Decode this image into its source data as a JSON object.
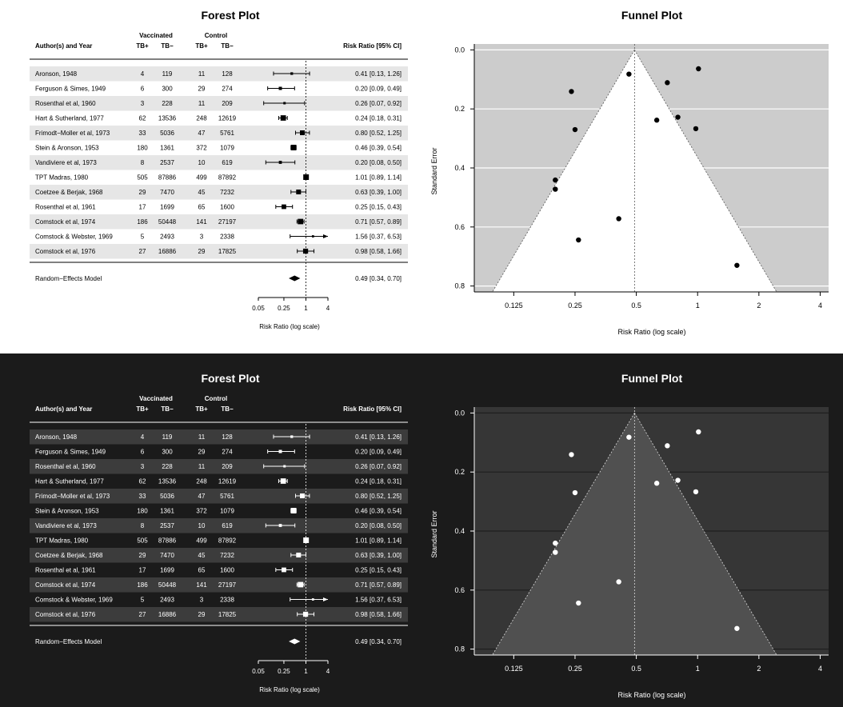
{
  "theme_colors": {
    "light": {
      "bg": "#ffffff",
      "fg": "#000000",
      "stripe": "#e6e6e6",
      "funnel_outer": "#cccccc",
      "funnel_inner": "#ffffff",
      "grid": "#ffffff",
      "point": "#000000",
      "refline": "#555555"
    },
    "dark": {
      "bg": "#1b1b1b",
      "fg": "#ffffff",
      "stripe": "#3c3c3c",
      "funnel_outer": "#363636",
      "funnel_inner": "#505050",
      "grid": "#1f1f1f",
      "point": "#ffffff",
      "refline": "#dddddd"
    }
  },
  "forest": {
    "title": "Forest Plot",
    "col_author": "Author(s) and Year",
    "group_vaccinated": "Vaccinated",
    "group_control": "Control",
    "tb_pos": "TB+",
    "tb_neg": "TB−",
    "col_rr": "Risk Ratio [95% CI]",
    "xlabel": "Risk Ratio (log scale)",
    "model_label": "Random−Effects Model"
  },
  "funnel": {
    "title": "Funnel Plot",
    "xlabel": "Risk Ratio (log scale)",
    "ylabel": "Standard Error"
  },
  "chart_data": [
    {
      "type": "forest",
      "title": "Forest Plot",
      "xlabel": "Risk Ratio (log scale)",
      "x_scale": "log",
      "xlim": [
        0.05,
        4
      ],
      "xticks": [
        0.05,
        0.25,
        1,
        4
      ],
      "xtick_labels": [
        "0.05",
        "0.25",
        "1",
        "4"
      ],
      "reference_line": 1,
      "studies": [
        {
          "author": "Aronson, 1948",
          "tpos": "4",
          "tneg": "119",
          "cpos": "11",
          "cneg": "128",
          "rr": 0.41,
          "lo": 0.13,
          "hi": 1.26,
          "text": "0.41 [0.13, 1.26]",
          "weight": 0.25
        },
        {
          "author": "Ferguson & Simes, 1949",
          "tpos": "6",
          "tneg": "300",
          "cpos": "29",
          "cneg": "274",
          "rr": 0.2,
          "lo": 0.09,
          "hi": 0.49,
          "text": "0.20 [0.09, 0.49]",
          "weight": 0.4
        },
        {
          "author": "Rosenthal et al, 1960",
          "tpos": "3",
          "tneg": "228",
          "cpos": "11",
          "cneg": "209",
          "rr": 0.26,
          "lo": 0.07,
          "hi": 0.92,
          "text": "0.26 [0.07, 0.92]",
          "weight": 0.2
        },
        {
          "author": "Hart & Sutherland, 1977",
          "tpos": "62",
          "tneg": "13536",
          "cpos": "248",
          "cneg": "12619",
          "rr": 0.24,
          "lo": 0.18,
          "hi": 0.31,
          "text": "0.24 [0.18, 0.31]",
          "weight": 0.95
        },
        {
          "author": "Frimodt−Moller et al, 1973",
          "tpos": "33",
          "tneg": "5036",
          "cpos": "47",
          "cneg": "5761",
          "rr": 0.8,
          "lo": 0.52,
          "hi": 1.25,
          "text": "0.80 [0.52, 1.25]",
          "weight": 0.8
        },
        {
          "author": "Stein & Aronson, 1953",
          "tpos": "180",
          "tneg": "1361",
          "cpos": "372",
          "cneg": "1079",
          "rr": 0.46,
          "lo": 0.39,
          "hi": 0.54,
          "text": "0.46 [0.39, 0.54]",
          "weight": 1.0
        },
        {
          "author": "Vandiviere et al, 1973",
          "tpos": "8",
          "tneg": "2537",
          "cpos": "10",
          "cneg": "619",
          "rr": 0.2,
          "lo": 0.08,
          "hi": 0.5,
          "text": "0.20 [0.08, 0.50]",
          "weight": 0.35
        },
        {
          "author": "TPT Madras, 1980",
          "tpos": "505",
          "tneg": "87886",
          "cpos": "499",
          "cneg": "87892",
          "rr": 1.01,
          "lo": 0.89,
          "hi": 1.14,
          "text": "1.01 [0.89, 1.14]",
          "weight": 1.0
        },
        {
          "author": "Coetzee & Berjak, 1968",
          "tpos": "29",
          "tneg": "7470",
          "cpos": "45",
          "cneg": "7232",
          "rr": 0.63,
          "lo": 0.39,
          "hi": 1.0,
          "text": "0.63 [0.39, 1.00]",
          "weight": 0.8
        },
        {
          "author": "Rosenthal et al, 1961",
          "tpos": "17",
          "tneg": "1699",
          "cpos": "65",
          "cneg": "1600",
          "rr": 0.25,
          "lo": 0.15,
          "hi": 0.43,
          "text": "0.25 [0.15, 0.43]",
          "weight": 0.75
        },
        {
          "author": "Comstock et al, 1974",
          "tpos": "186",
          "tneg": "50448",
          "cpos": "141",
          "cneg": "27197",
          "rr": 0.71,
          "lo": 0.57,
          "hi": 0.89,
          "text": "0.71 [0.57, 0.89]",
          "weight": 0.95
        },
        {
          "author": "Comstock & Webster, 1969",
          "tpos": "5",
          "tneg": "2493",
          "cpos": "3",
          "cneg": "2338",
          "rr": 1.56,
          "lo": 0.37,
          "hi": 6.53,
          "text": "1.56 [0.37, 6.53]",
          "weight": 0.15,
          "arrow_right": true
        },
        {
          "author": "Comstock et al, 1976",
          "tpos": "27",
          "tneg": "16886",
          "cpos": "29",
          "cneg": "17825",
          "rr": 0.98,
          "lo": 0.58,
          "hi": 1.66,
          "text": "0.98 [0.58, 1.66]",
          "weight": 0.85
        }
      ],
      "summary": {
        "label": "Random−Effects Model",
        "rr": 0.49,
        "lo": 0.34,
        "hi": 0.7,
        "text": "0.49 [0.34, 0.70]"
      }
    },
    {
      "type": "scatter",
      "title": "Funnel Plot",
      "xlabel": "Risk Ratio (log scale)",
      "ylabel": "Standard Error",
      "x_scale": "log",
      "xlim": [
        0.08,
        4.4
      ],
      "xticks": [
        0.125,
        0.25,
        0.5,
        1,
        2,
        4
      ],
      "xtick_labels": [
        "0.125",
        "0.25",
        "0.5",
        "1",
        "2",
        "4"
      ],
      "ylim": [
        0.82,
        -0.02
      ],
      "y_reversed": true,
      "yticks": [
        0.0,
        0.2,
        0.4,
        0.6,
        0.8
      ],
      "ytick_labels": [
        "0.0",
        "0.2",
        "0.4",
        "0.6",
        "0.8"
      ],
      "center": 0.49,
      "points": [
        {
          "x": 0.41,
          "y": 0.572
        },
        {
          "x": 0.2,
          "y": 0.441
        },
        {
          "x": 0.26,
          "y": 0.644
        },
        {
          "x": 0.24,
          "y": 0.141
        },
        {
          "x": 0.8,
          "y": 0.228
        },
        {
          "x": 0.46,
          "y": 0.082
        },
        {
          "x": 0.2,
          "y": 0.472
        },
        {
          "x": 1.01,
          "y": 0.064
        },
        {
          "x": 0.63,
          "y": 0.238
        },
        {
          "x": 0.25,
          "y": 0.27
        },
        {
          "x": 0.71,
          "y": 0.111
        },
        {
          "x": 1.56,
          "y": 0.73
        },
        {
          "x": 0.98,
          "y": 0.267
        }
      ]
    }
  ]
}
